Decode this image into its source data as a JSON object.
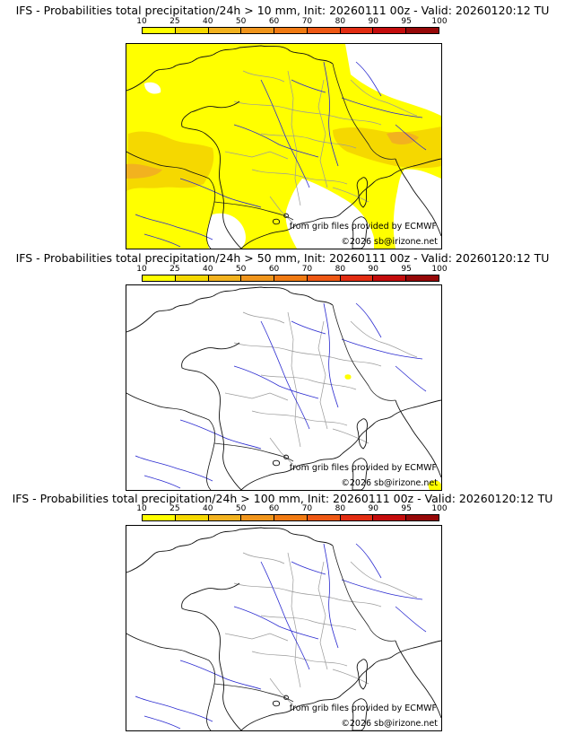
{
  "colorbar": {
    "ticks": [
      "10",
      "25",
      "40",
      "50",
      "60",
      "70",
      "80",
      "90",
      "95",
      "100"
    ],
    "colors": [
      "#ffff00",
      "#f5d800",
      "#f2b21f",
      "#f0951c",
      "#f07a12",
      "#ee5814",
      "#e22d12",
      "#c40c0c",
      "#960808",
      "#5e0404"
    ]
  },
  "panels": [
    {
      "title": "IFS - Probabilities total precipitation/24h > 10 mm, Init: 20260111 00z - Valid: 20260120:12 TU",
      "source_credit": "from grib files provided by ECMWF",
      "copyright": "©2026 sb@irizone.net",
      "coverage": "widespread"
    },
    {
      "title": "IFS - Probabilities total precipitation/24h > 50 mm, Init: 20260111 00z - Valid: 20260120:12 TU",
      "source_credit": "from grib files provided by ECMWF",
      "copyright": "©2026 sb@irizone.net",
      "coverage": "minimal"
    },
    {
      "title": "IFS - Probabilities total precipitation/24h > 100 mm, Init: 20260111 00z - Valid: 20260120:12 TU",
      "source_credit": "from grib files provided by ECMWF",
      "copyright": "©2026 sb@irizone.net",
      "coverage": "none"
    }
  ]
}
